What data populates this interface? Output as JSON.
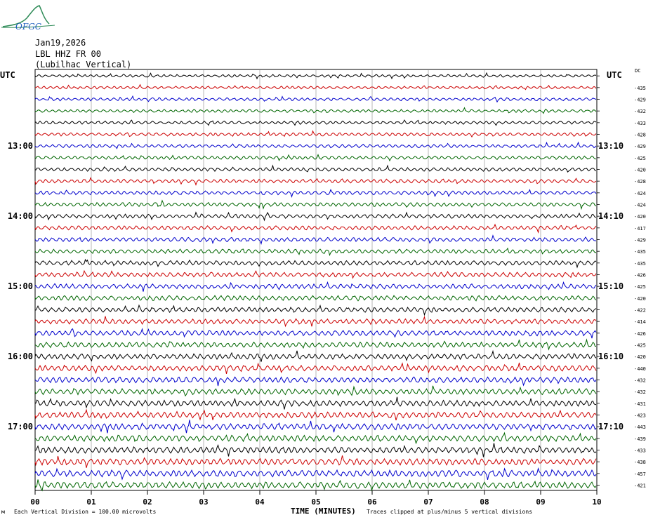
{
  "logo": {
    "text": "OFGC"
  },
  "header": {
    "date": "Jan19,2026",
    "station": "LBL HHZ FR 00",
    "location": "(Lubilhac Vertical)"
  },
  "left_utc_label": "UTC",
  "right_utc_label": "UTC",
  "dc_label": "DC",
  "footer": {
    "small_mark": "м",
    "scale_note": "Each Vertical Division =  100.00 microvolts",
    "clip_note": "Traces clipped at plus/minus 5 vertical divisions"
  },
  "chart_data": {
    "type": "line",
    "xlabel": "TIME (MINUTES)",
    "xlim": [
      0,
      10
    ],
    "x_ticks": [
      "00",
      "01",
      "02",
      "03",
      "04",
      "05",
      "06",
      "07",
      "08",
      "09",
      "10"
    ],
    "trace_colors": [
      "#000000",
      "#cc0000",
      "#0000cc",
      "#006600"
    ],
    "left_hour_labels": [
      "13:00",
      "14:00",
      "15:00",
      "16:00",
      "17:00"
    ],
    "right_hour_labels": [
      "13:10",
      "14:10",
      "15:10",
      "16:10",
      "17:10"
    ],
    "hour_label_rows": [
      6,
      12,
      18,
      24,
      30
    ],
    "dc_offsets": [
      "-435",
      "-429",
      "-432",
      "-433",
      "-428",
      "-429",
      "-425",
      "-420",
      "-428",
      "-424",
      "-424",
      "-420",
      "-417",
      "-429",
      "-435",
      "-435",
      "-426",
      "-425",
      "-420",
      "-422",
      "-414",
      "-426",
      "-425",
      "-420",
      "-440",
      "-432",
      "-432",
      "-431",
      "-423",
      "-443",
      "-439",
      "-433",
      "-438",
      "-457",
      "-421"
    ],
    "rows": 36
  }
}
